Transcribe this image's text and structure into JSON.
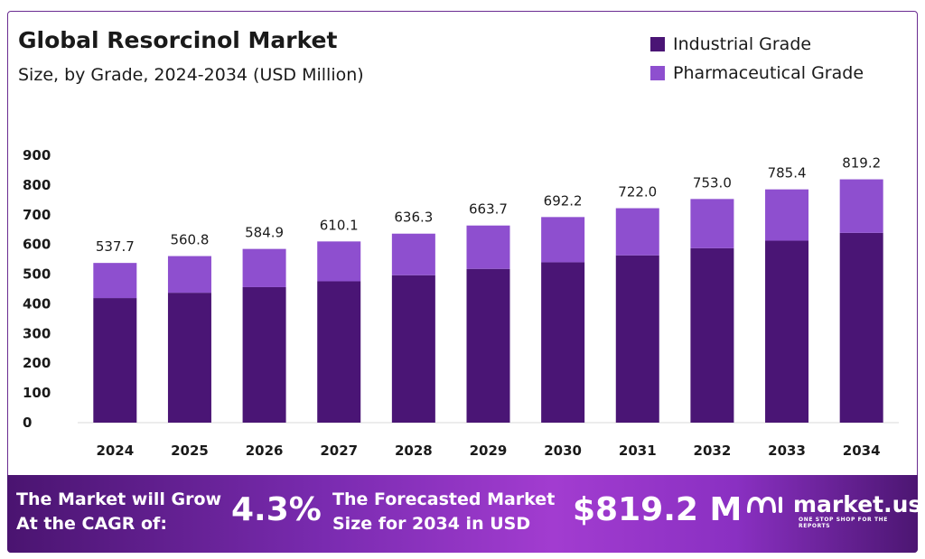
{
  "colors": {
    "industrial": "#4a1575",
    "pharmaceutical": "#8e4fcf",
    "footer_text": "#ffffff"
  },
  "chart_data": {
    "type": "bar",
    "stacked": true,
    "title": "Global Resorcinol Market",
    "subtitle": "Size, by Grade, 2024-2034 (USD Million)",
    "categories": [
      "2024",
      "2025",
      "2026",
      "2027",
      "2028",
      "2029",
      "2030",
      "2031",
      "2032",
      "2033",
      "2034"
    ],
    "series": [
      {
        "name": "Industrial Grade",
        "values": [
          419.4,
          437.4,
          456.2,
          475.9,
          496.3,
          517.7,
          539.9,
          563.2,
          587.3,
          612.6,
          639.0
        ]
      },
      {
        "name": "Pharmaceutical Grade",
        "values": [
          118.3,
          123.4,
          128.7,
          134.2,
          140.0,
          146.0,
          152.3,
          158.8,
          165.7,
          172.8,
          180.2
        ]
      }
    ],
    "totals": [
      537.7,
      560.8,
      584.9,
      610.1,
      636.3,
      663.7,
      692.2,
      722.0,
      753.0,
      785.4,
      819.2
    ],
    "total_labels": [
      "537.7",
      "560.8",
      "584.9",
      "610.1",
      "636.3",
      "663.7",
      "692.2",
      "722.0",
      "753.0",
      "785.4",
      "819.2"
    ],
    "y_ticks": [
      0,
      100,
      200,
      300,
      400,
      500,
      600,
      700,
      800,
      900
    ],
    "ylim": [
      0,
      900
    ],
    "grid": false,
    "legend": "top-right"
  },
  "footer": {
    "cagr_text": "The Market will Grow At the CAGR of:",
    "cagr_value": "4.3%",
    "forecast_text": "The Forecasted Market Size for 2034 in USD",
    "forecast_value": "$819.2 M",
    "brand": "market.us",
    "tagline": "ONE STOP SHOP FOR THE REPORTS"
  }
}
